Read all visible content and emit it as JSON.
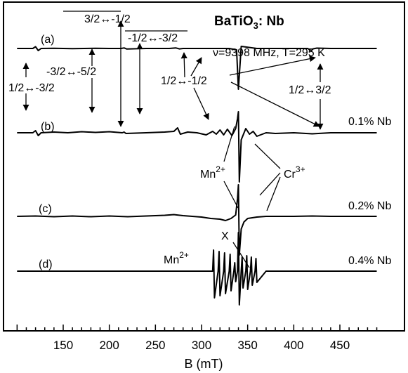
{
  "chart_data": {
    "type": "line",
    "title_line1": "BaTiO",
    "title_sub": "3",
    "title_line2": ": Nb",
    "condition": "ν=9398 MHz, T=295 K",
    "xlabel": "B (mT)",
    "ylabel": "",
    "xlim": [
      100,
      490
    ],
    "xticks": [
      150,
      200,
      250,
      300,
      350,
      400,
      450
    ],
    "grid": false,
    "series": [
      {
        "label": "(a)",
        "concentration": "",
        "x": [
          100,
          117,
          120,
          123,
          126,
          140,
          160,
          185,
          200,
          213,
          216,
          219,
          240,
          265,
          272,
          276,
          280,
          290,
          300,
          330,
          338,
          340,
          343,
          360,
          380,
          400,
          415,
          419,
          421,
          425,
          440,
          460,
          490
        ],
        "y": [
          0,
          0,
          2.5,
          -3,
          0,
          0.3,
          -0.2,
          0.3,
          0,
          0,
          0.8,
          -0.8,
          0,
          0,
          0.8,
          -0.6,
          0,
          0,
          0,
          0,
          -2,
          -58,
          3,
          0,
          0,
          0,
          0,
          -3,
          -0.5,
          0.5,
          0,
          0,
          0
        ]
      },
      {
        "label": "(b)",
        "concentration": "0.1% Nb",
        "x": [
          100,
          117,
          120,
          123,
          126,
          140,
          155,
          170,
          185,
          200,
          214,
          216,
          218,
          240,
          260,
          270,
          274,
          277,
          285,
          295,
          305,
          312,
          316,
          320,
          324,
          328,
          333,
          337,
          339,
          340,
          341,
          343,
          348,
          352,
          356,
          360,
          370,
          380,
          400,
          420,
          440,
          460,
          490
        ],
        "y": [
          0,
          0,
          3,
          -4,
          0,
          1,
          0,
          1.5,
          0.5,
          1.5,
          0,
          1,
          -1,
          0,
          1,
          2,
          7,
          -2,
          1,
          0,
          -3,
          2,
          -2,
          4,
          -3,
          5,
          -4,
          6,
          20,
          30,
          -70,
          -10,
          6,
          -2,
          2,
          -5,
          0,
          -1,
          0,
          -1.5,
          0,
          0,
          0
        ]
      },
      {
        "label": "(c)",
        "concentration": "0.2% Nb",
        "x": [
          100,
          120,
          140,
          160,
          180,
          200,
          220,
          240,
          260,
          270,
          280,
          300,
          310,
          320,
          326,
          332,
          337,
          339,
          340,
          341,
          343,
          346,
          350,
          360,
          370,
          380,
          400,
          420,
          440,
          460,
          490
        ],
        "y": [
          0,
          0.5,
          -0.5,
          0.5,
          -0.5,
          0.5,
          -0.5,
          0.5,
          1.5,
          2.5,
          1,
          -1,
          -3,
          -4,
          -6,
          -3,
          2,
          25,
          45,
          -55,
          -18,
          -8,
          -3,
          -1,
          0,
          0,
          0,
          0.5,
          0,
          0,
          0
        ]
      },
      {
        "label": "(d)",
        "concentration": "0.4% Nb",
        "x": [
          100,
          150,
          200,
          250,
          300,
          312,
          313,
          314,
          318,
          319,
          320,
          324,
          325,
          326,
          330,
          331,
          332,
          335,
          336,
          337,
          339,
          340,
          341,
          343,
          344,
          345,
          348,
          349,
          350,
          353,
          354,
          355,
          358,
          359,
          360,
          370,
          400,
          450,
          490
        ],
        "y": [
          0,
          0,
          0,
          0,
          0,
          0,
          30,
          -38,
          0,
          28,
          -35,
          0,
          26,
          -32,
          0,
          24,
          -28,
          0,
          12,
          -15,
          0,
          55,
          -48,
          0,
          20,
          -24,
          0,
          22,
          -26,
          0,
          20,
          -20,
          0,
          18,
          -16,
          0,
          0,
          0,
          0
        ]
      }
    ],
    "annotations": {
      "t1": "3/2↔-1/2",
      "t2": "-1/2↔-3/2",
      "t3": "-3/2↔-5/2",
      "t4": "1/2↔-3/2",
      "t5": "1/2↔-1/2",
      "t6": "1/2↔3/2",
      "mn": "Mn",
      "cr": "Cr",
      "mn_sup": "2+",
      "cr_sup": "3+",
      "x": "X"
    }
  }
}
